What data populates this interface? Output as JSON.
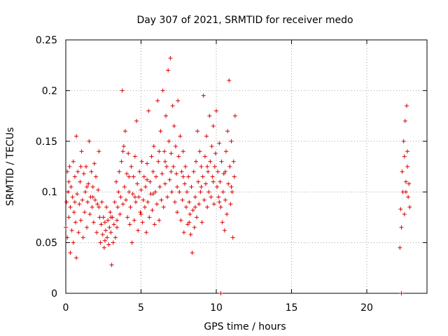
{
  "chart_data": {
    "type": "scatter",
    "title": "Day 307 of 2021, SRMTID for receiver medo",
    "xlabel": "GPS time / hours",
    "ylabel": "SRMTID / TECUs",
    "xlim": [
      0,
      24
    ],
    "ylim": [
      0,
      0.25
    ],
    "xticks": [
      0,
      5,
      10,
      15,
      20
    ],
    "xtick_labels": [
      "0",
      "5",
      "10",
      "15",
      "20"
    ],
    "yticks": [
      0,
      0.05,
      0.1,
      0.15,
      0.2,
      0.25
    ],
    "ytick_labels": [
      "0",
      "0.05",
      "0.1",
      "0.15",
      "0.2",
      "0.25"
    ],
    "grid": true,
    "legend": "none",
    "marker": "plus",
    "color": "#dd0000",
    "series": [
      {
        "values": [
          [
            0.0,
            0.065
          ],
          [
            0.05,
            0.09
          ],
          [
            0.1,
            0.12
          ],
          [
            0.1,
            0.055
          ],
          [
            0.15,
            0.1
          ],
          [
            0.2,
            0.075
          ],
          [
            0.25,
            0.125
          ],
          [
            0.3,
            0.04
          ],
          [
            0.3,
            0.085
          ],
          [
            0.35,
            0.105
          ],
          [
            0.4,
            0.062
          ],
          [
            0.45,
            0.095
          ],
          [
            0.5,
            0.13
          ],
          [
            0.5,
            0.05
          ],
          [
            0.55,
            0.08
          ],
          [
            0.6,
            0.115
          ],
          [
            0.65,
            0.07
          ],
          [
            0.7,
            0.155
          ],
          [
            0.7,
            0.035
          ],
          [
            0.75,
            0.098
          ],
          [
            0.8,
            0.12
          ],
          [
            0.85,
            0.06
          ],
          [
            0.9,
            0.088
          ],
          [
            0.95,
            0.11
          ],
          [
            1.0,
            0.072
          ],
          [
            1.05,
            0.14
          ],
          [
            1.1,
            0.092
          ],
          [
            1.15,
            0.055
          ],
          [
            1.2,
            0.118
          ],
          [
            1.25,
            0.08
          ],
          [
            1.3,
            0.1
          ],
          [
            1.35,
            0.125
          ],
          [
            1.4,
            0.065
          ],
          [
            1.45,
            0.09
          ],
          [
            1.5,
            0.108
          ],
          [
            1.55,
            0.15
          ],
          [
            1.6,
            0.078
          ],
          [
            1.65,
            0.095
          ],
          [
            1.7,
            0.12
          ],
          [
            1.75,
            0.085
          ],
          [
            1.8,
            0.105
          ],
          [
            1.85,
            0.07
          ],
          [
            1.9,
            0.128
          ],
          [
            1.95,
            0.092
          ],
          [
            2.0,
            0.115
          ],
          [
            2.05,
            0.06
          ],
          [
            2.1,
            0.088
          ],
          [
            2.15,
            0.102
          ],
          [
            2.2,
            0.14
          ],
          [
            2.25,
            0.075
          ],
          [
            2.3,
            0.05
          ],
          [
            2.35,
            0.068
          ],
          [
            2.4,
            0.09
          ],
          [
            2.45,
            0.058
          ],
          [
            2.5,
            0.075
          ],
          [
            2.55,
            0.045
          ],
          [
            2.6,
            0.07
          ],
          [
            2.65,
            0.062
          ],
          [
            2.7,
            0.085
          ],
          [
            2.75,
            0.055
          ],
          [
            2.8,
            0.072
          ],
          [
            2.85,
            0.048
          ],
          [
            2.9,
            0.065
          ],
          [
            2.95,
            0.08
          ],
          [
            3.0,
            0.06
          ],
          [
            3.05,
            0.028
          ],
          [
            3.1,
            0.075
          ],
          [
            3.15,
            0.05
          ],
          [
            3.2,
            0.068
          ],
          [
            3.25,
            0.09
          ],
          [
            3.3,
            0.055
          ],
          [
            3.35,
            0.11
          ],
          [
            3.4,
            0.072
          ],
          [
            3.45,
            0.085
          ],
          [
            3.5,
            0.1
          ],
          [
            3.55,
            0.12
          ],
          [
            3.6,
            0.078
          ],
          [
            3.65,
            0.095
          ],
          [
            3.7,
            0.13
          ],
          [
            3.75,
            0.2
          ],
          [
            3.8,
            0.088
          ],
          [
            3.85,
            0.145
          ],
          [
            3.9,
            0.105
          ],
          [
            3.95,
            0.16
          ],
          [
            4.0,
            0.092
          ],
          [
            4.05,
            0.118
          ],
          [
            4.1,
            0.075
          ],
          [
            4.15,
            0.138
          ],
          [
            4.2,
            0.1
          ],
          [
            4.25,
            0.068
          ],
          [
            4.3,
            0.085
          ],
          [
            4.35,
            0.125
          ],
          [
            4.4,
            0.05
          ],
          [
            4.45,
            0.098
          ],
          [
            4.5,
            0.115
          ],
          [
            4.55,
            0.072
          ],
          [
            4.6,
            0.135
          ],
          [
            4.65,
            0.09
          ],
          [
            4.7,
            0.17
          ],
          [
            4.75,
            0.108
          ],
          [
            4.8,
            0.062
          ],
          [
            4.85,
            0.095
          ],
          [
            4.9,
            0.12
          ],
          [
            4.95,
            0.08
          ],
          [
            5.0,
            0.102
          ],
          [
            5.05,
            0.13
          ],
          [
            5.1,
            0.07
          ],
          [
            5.15,
            0.092
          ],
          [
            5.2,
            0.115
          ],
          [
            5.25,
            0.085
          ],
          [
            5.3,
            0.105
          ],
          [
            5.35,
            0.06
          ],
          [
            5.4,
            0.128
          ],
          [
            5.45,
            0.09
          ],
          [
            5.5,
            0.18
          ],
          [
            5.55,
            0.075
          ],
          [
            5.6,
            0.11
          ],
          [
            5.65,
            0.098
          ],
          [
            5.7,
            0.135
          ],
          [
            5.75,
            0.082
          ],
          [
            5.8,
            0.12
          ],
          [
            5.85,
            0.145
          ],
          [
            5.9,
            0.068
          ],
          [
            5.95,
            0.1
          ],
          [
            6.0,
            0.115
          ],
          [
            6.05,
            0.088
          ],
          [
            6.1,
            0.19
          ],
          [
            6.15,
            0.13
          ],
          [
            6.2,
            0.072
          ],
          [
            6.25,
            0.105
          ],
          [
            6.3,
            0.16
          ],
          [
            6.35,
            0.092
          ],
          [
            6.4,
            0.118
          ],
          [
            6.45,
            0.2
          ],
          [
            6.5,
            0.085
          ],
          [
            6.55,
            0.14
          ],
          [
            6.6,
            0.108
          ],
          [
            6.65,
            0.175
          ],
          [
            6.7,
            0.125
          ],
          [
            6.75,
            0.095
          ],
          [
            6.8,
            0.22
          ],
          [
            6.85,
            0.15
          ],
          [
            6.9,
            0.112
          ],
          [
            6.95,
            0.232
          ],
          [
            7.0,
            0.138
          ],
          [
            7.05,
            0.1
          ],
          [
            7.1,
            0.185
          ],
          [
            7.15,
            0.125
          ],
          [
            7.2,
            0.165
          ],
          [
            7.25,
            0.09
          ],
          [
            7.3,
            0.145
          ],
          [
            7.35,
            0.118
          ],
          [
            7.4,
            0.08
          ],
          [
            7.45,
            0.19
          ],
          [
            7.5,
            0.135
          ],
          [
            7.55,
            0.1
          ],
          [
            7.6,
            0.155
          ],
          [
            7.65,
            0.072
          ],
          [
            7.7,
            0.12
          ],
          [
            7.75,
            0.092
          ],
          [
            7.8,
            0.14
          ],
          [
            7.85,
            0.06
          ],
          [
            7.9,
            0.108
          ],
          [
            7.95,
            0.125
          ],
          [
            8.0,
            0.085
          ],
          [
            8.05,
            0.1
          ],
          [
            8.1,
            0.068
          ],
          [
            8.15,
            0.115
          ],
          [
            8.2,
            0.09
          ],
          [
            8.25,
            0.078
          ],
          [
            8.3,
            0.058
          ],
          [
            8.35,
            0.105
          ],
          [
            8.4,
            0.04
          ],
          [
            8.45,
            0.082
          ],
          [
            8.5,
            0.12
          ],
          [
            8.55,
            0.065
          ],
          [
            8.6,
            0.095
          ],
          [
            8.65,
            0.13
          ],
          [
            8.7,
            0.075
          ],
          [
            8.75,
            0.16
          ],
          [
            8.8,
            0.11
          ],
          [
            8.85,
            0.088
          ],
          [
            8.9,
            0.14
          ],
          [
            8.95,
            0.1
          ],
          [
            9.0,
            0.125
          ],
          [
            9.05,
            0.07
          ],
          [
            9.1,
            0.115
          ],
          [
            9.15,
            0.195
          ],
          [
            9.2,
            0.092
          ],
          [
            9.25,
            0.135
          ],
          [
            9.3,
            0.108
          ],
          [
            9.35,
            0.155
          ],
          [
            9.4,
            0.085
          ],
          [
            9.45,
            0.12
          ],
          [
            9.5,
            0.1
          ],
          [
            9.55,
            0.175
          ],
          [
            9.6,
            0.13
          ],
          [
            9.65,
            0.095
          ],
          [
            9.7,
            0.145
          ],
          [
            9.75,
            0.115
          ],
          [
            9.8,
            0.165
          ],
          [
            9.85,
            0.088
          ],
          [
            9.9,
            0.125
          ],
          [
            9.95,
            0.138
          ],
          [
            10.0,
            0.18
          ],
          [
            10.05,
            0.105
          ],
          [
            10.1,
            0.12
          ],
          [
            10.15,
            0.095
          ],
          [
            10.2,
            0.148
          ],
          [
            10.25,
            0.11
          ],
          [
            10.3,
            0.085
          ],
          [
            10.35,
            0.13
          ],
          [
            10.4,
            0.07
          ],
          [
            10.45,
            0.1
          ],
          [
            10.5,
            0.118
          ],
          [
            10.55,
            0.062
          ],
          [
            10.6,
            0.092
          ],
          [
            10.65,
            0.14
          ],
          [
            10.7,
            0.078
          ],
          [
            10.75,
            0.16
          ],
          [
            10.8,
            0.108
          ],
          [
            10.85,
            0.21
          ],
          [
            10.9,
            0.125
          ],
          [
            10.95,
            0.088
          ],
          [
            11.0,
            0.15
          ],
          [
            11.05,
            0.1
          ],
          [
            11.1,
            0.055
          ],
          [
            11.15,
            0.13
          ],
          [
            11.2,
            0.115
          ],
          [
            11.25,
            0.175
          ],
          [
            0.2,
            0.11
          ],
          [
            0.6,
            0.09
          ],
          [
            1.0,
            0.125
          ],
          [
            1.4,
            0.105
          ],
          [
            1.8,
            0.095
          ],
          [
            2.2,
            0.085
          ],
          [
            2.6,
            0.052
          ],
          [
            3.0,
            0.075
          ],
          [
            3.4,
            0.065
          ],
          [
            3.8,
            0.14
          ],
          [
            4.2,
            0.115
          ],
          [
            4.6,
            0.095
          ],
          [
            5.0,
            0.078
          ],
          [
            5.4,
            0.112
          ],
          [
            5.8,
            0.098
          ],
          [
            6.2,
            0.14
          ],
          [
            6.6,
            0.13
          ],
          [
            7.0,
            0.12
          ],
          [
            7.4,
            0.105
          ],
          [
            7.8,
            0.115
          ],
          [
            8.2,
            0.07
          ],
          [
            8.6,
            0.085
          ],
          [
            9.0,
            0.105
          ],
          [
            9.4,
            0.125
          ],
          [
            9.8,
            0.11
          ],
          [
            10.2,
            0.09
          ],
          [
            10.6,
            0.12
          ],
          [
            11.0,
            0.105
          ],
          [
            22.2,
            0.045
          ],
          [
            22.25,
            0.083
          ],
          [
            22.3,
            0.065
          ],
          [
            22.35,
            0.12
          ],
          [
            22.4,
            0.1
          ],
          [
            22.45,
            0.15
          ],
          [
            22.5,
            0.135
          ],
          [
            22.55,
            0.17
          ],
          [
            22.6,
            0.11
          ],
          [
            22.65,
            0.185
          ],
          [
            22.7,
            0.125
          ],
          [
            22.75,
            0.095
          ],
          [
            22.8,
            0.108
          ],
          [
            22.85,
            0.085
          ],
          [
            22.5,
            0.078
          ],
          [
            22.6,
            0.1
          ],
          [
            22.7,
            0.14
          ]
        ]
      },
      {
        "values": [
          [
            10.3,
            0.0
          ],
          [
            22.3,
            0.0
          ]
        ]
      }
    ]
  }
}
